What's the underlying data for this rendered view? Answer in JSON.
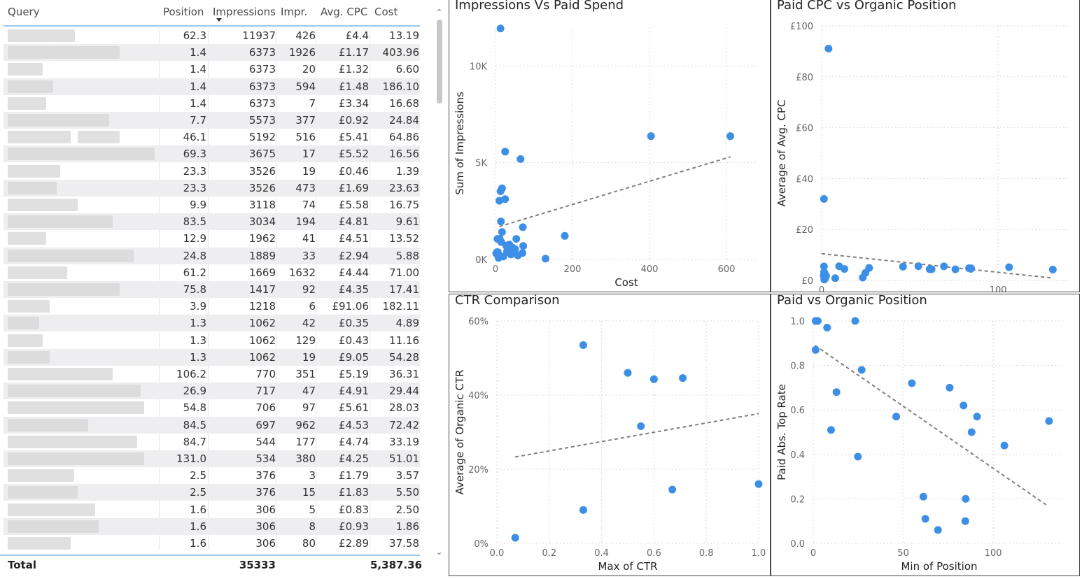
{
  "table": {
    "columns": {
      "query": "Query",
      "position": "Position",
      "impressions": "Impressions",
      "impr": "Impr.",
      "cpc": "Avg. CPC",
      "cost": "Cost"
    },
    "rows": [
      {
        "position": "62.3",
        "impressions": "11937",
        "impr": "426",
        "cpc": "£4.4",
        "cost": "13.19"
      },
      {
        "position": "1.4",
        "impressions": "6373",
        "impr": "1926",
        "cpc": "£1.17",
        "cost": "403.96"
      },
      {
        "position": "1.4",
        "impressions": "6373",
        "impr": "20",
        "cpc": "£1.32",
        "cost": "6.60"
      },
      {
        "position": "1.4",
        "impressions": "6373",
        "impr": "594",
        "cpc": "£1.48",
        "cost": "186.10"
      },
      {
        "position": "1.4",
        "impressions": "6373",
        "impr": "7",
        "cpc": "£3.34",
        "cost": "16.68"
      },
      {
        "position": "7.7",
        "impressions": "5573",
        "impr": "377",
        "cpc": "£0.92",
        "cost": "24.84"
      },
      {
        "position": "46.1",
        "impressions": "5192",
        "impr": "516",
        "cpc": "£5.41",
        "cost": "64.86"
      },
      {
        "position": "69.3",
        "impressions": "3675",
        "impr": "17",
        "cpc": "£5.52",
        "cost": "16.56"
      },
      {
        "position": "23.3",
        "impressions": "3526",
        "impr": "19",
        "cpc": "£0.46",
        "cost": "1.39"
      },
      {
        "position": "23.3",
        "impressions": "3526",
        "impr": "473",
        "cpc": "£1.69",
        "cost": "23.63"
      },
      {
        "position": "9.9",
        "impressions": "3118",
        "impr": "74",
        "cpc": "£5.58",
        "cost": "16.75"
      },
      {
        "position": "83.5",
        "impressions": "3034",
        "impr": "194",
        "cpc": "£4.81",
        "cost": "9.61"
      },
      {
        "position": "12.9",
        "impressions": "1962",
        "impr": "41",
        "cpc": "£4.51",
        "cost": "13.52"
      },
      {
        "position": "24.8",
        "impressions": "1889",
        "impr": "33",
        "cpc": "£2.94",
        "cost": "5.88"
      },
      {
        "position": "61.2",
        "impressions": "1669",
        "impr": "1632",
        "cpc": "£4.44",
        "cost": "71.00"
      },
      {
        "position": "75.8",
        "impressions": "1417",
        "impr": "92",
        "cpc": "£4.35",
        "cost": "17.41"
      },
      {
        "position": "3.9",
        "impressions": "1218",
        "impr": "6",
        "cpc": "£91.06",
        "cost": "182.11"
      },
      {
        "position": "1.3",
        "impressions": "1062",
        "impr": "42",
        "cpc": "£0.35",
        "cost": "4.89"
      },
      {
        "position": "1.3",
        "impressions": "1062",
        "impr": "129",
        "cpc": "£0.43",
        "cost": "11.16"
      },
      {
        "position": "1.3",
        "impressions": "1062",
        "impr": "19",
        "cpc": "£9.05",
        "cost": "54.28"
      },
      {
        "position": "106.2",
        "impressions": "770",
        "impr": "351",
        "cpc": "£5.19",
        "cost": "36.31"
      },
      {
        "position": "26.9",
        "impressions": "717",
        "impr": "47",
        "cpc": "£4.91",
        "cost": "29.44"
      },
      {
        "position": "54.8",
        "impressions": "706",
        "impr": "97",
        "cpc": "£5.61",
        "cost": "28.03"
      },
      {
        "position": "84.5",
        "impressions": "697",
        "impr": "962",
        "cpc": "£4.53",
        "cost": "72.42"
      },
      {
        "position": "84.7",
        "impressions": "544",
        "impr": "177",
        "cpc": "£4.74",
        "cost": "33.19"
      },
      {
        "position": "131.0",
        "impressions": "534",
        "impr": "380",
        "cpc": "£4.25",
        "cost": "51.01"
      },
      {
        "position": "2.5",
        "impressions": "376",
        "impr": "3",
        "cpc": "£1.79",
        "cost": "3.57"
      },
      {
        "position": "2.5",
        "impressions": "376",
        "impr": "15",
        "cpc": "£1.83",
        "cost": "5.50"
      },
      {
        "position": "1.6",
        "impressions": "306",
        "impr": "5",
        "cpc": "£0.83",
        "cost": "2.50"
      },
      {
        "position": "1.6",
        "impressions": "306",
        "impr": "8",
        "cpc": "£0.93",
        "cost": "1.86"
      },
      {
        "position": "1.6",
        "impressions": "306",
        "impr": "80",
        "cpc": "£2.89",
        "cost": "37.58"
      }
    ],
    "total": {
      "label": "Total",
      "impressions": "35333",
      "cost": "5,387.36"
    }
  },
  "colors": {
    "point": "#3d8fe6",
    "trend": "#7f7f7f",
    "grid": "#d9d9d9",
    "accent": "#9fc7e6"
  },
  "chart_data": [
    {
      "id": "impressions_vs_spend",
      "type": "scatter",
      "title": "Impressions Vs Paid Spend",
      "xlabel": "Cost",
      "ylabel": "Sum of Impressions",
      "xlim": [
        0,
        680
      ],
      "ylim": [
        0,
        12000
      ],
      "xticks": [
        0,
        200,
        400,
        600
      ],
      "xtick_labels": [
        "0",
        "200",
        "400",
        "600"
      ],
      "yticks": [
        0,
        5000,
        10000
      ],
      "ytick_labels": [
        "0K",
        "5K",
        "10K"
      ],
      "grid": true,
      "trend": [
        [
          10,
          1700
        ],
        [
          610,
          5300
        ]
      ],
      "points": [
        [
          13,
          11937
        ],
        [
          404,
          6373
        ],
        [
          610,
          6373
        ],
        [
          25,
          5573
        ],
        [
          65,
          5192
        ],
        [
          17,
          3675
        ],
        [
          13,
          3526
        ],
        [
          25,
          3118
        ],
        [
          10,
          3034
        ],
        [
          14,
          1962
        ],
        [
          71,
          1669
        ],
        [
          17,
          1417
        ],
        [
          180,
          1218
        ],
        [
          5,
          1062
        ],
        [
          11,
          1062
        ],
        [
          54,
          1062
        ],
        [
          36,
          770
        ],
        [
          29,
          717
        ],
        [
          28,
          706
        ],
        [
          72,
          697
        ],
        [
          33,
          544
        ],
        [
          51,
          534
        ],
        [
          4,
          376
        ],
        [
          6,
          376
        ],
        [
          2,
          306
        ],
        [
          2,
          306
        ],
        [
          38,
          306
        ],
        [
          130,
          40
        ],
        [
          70,
          330
        ],
        [
          45,
          600
        ],
        [
          20,
          150
        ],
        [
          58,
          210
        ],
        [
          8,
          80
        ],
        [
          15,
          900
        ],
        [
          30,
          420
        ],
        [
          40,
          260
        ]
      ]
    },
    {
      "id": "paid_cpc_vs_organic_position",
      "type": "scatter",
      "title": "Paid CPC vs Organic Position",
      "xlabel": "",
      "ylabel": "Average of Avg. CPC",
      "xlim": [
        0,
        140
      ],
      "ylim": [
        0,
        100
      ],
      "xticks": [
        0,
        100
      ],
      "xtick_labels": [
        "0",
        "100"
      ],
      "yticks": [
        0,
        20,
        40,
        60,
        80,
        100
      ],
      "ytick_labels": [
        "£0",
        "£20",
        "£40",
        "£60",
        "£80",
        "£100"
      ],
      "grid": true,
      "trend": [
        [
          0,
          10.5
        ],
        [
          130,
          1
        ]
      ],
      "points": [
        [
          3.9,
          91.06
        ],
        [
          1.3,
          32
        ],
        [
          1.3,
          5.5
        ],
        [
          1.4,
          1.3
        ],
        [
          1.4,
          3.3
        ],
        [
          1.6,
          2.9
        ],
        [
          2.5,
          1.8
        ],
        [
          7.7,
          0.9
        ],
        [
          9.9,
          5.58
        ],
        [
          12.9,
          4.51
        ],
        [
          23.3,
          1.1
        ],
        [
          24.8,
          2.94
        ],
        [
          26.9,
          4.91
        ],
        [
          46.1,
          5.41
        ],
        [
          54.8,
          5.61
        ],
        [
          61.2,
          4.44
        ],
        [
          62.3,
          4.4
        ],
        [
          69.3,
          5.52
        ],
        [
          75.8,
          4.35
        ],
        [
          83.5,
          4.81
        ],
        [
          84.5,
          4.53
        ],
        [
          84.7,
          4.74
        ],
        [
          106.2,
          5.19
        ],
        [
          131.0,
          4.25
        ],
        [
          1.5,
          0.35
        ],
        [
          2.0,
          0.8
        ],
        [
          1.2,
          2.0
        ]
      ]
    },
    {
      "id": "ctr_comparison",
      "type": "scatter",
      "title": "CTR Comparison",
      "xlabel": "Max of CTR",
      "ylabel": "Average of Organic CTR",
      "xlim": [
        0,
        1
      ],
      "ylim": [
        0,
        0.6
      ],
      "xticks": [
        0,
        0.2,
        0.4,
        0.6,
        0.8,
        1.0
      ],
      "xtick_labels": [
        "0.0",
        "0.2",
        "0.4",
        "0.6",
        "0.8",
        "1.0"
      ],
      "yticks": [
        0,
        0.2,
        0.4,
        0.6
      ],
      "ytick_labels": [
        "0%",
        "20%",
        "40%",
        "60%"
      ],
      "grid": true,
      "trend": [
        [
          0.07,
          0.233
        ],
        [
          1.0,
          0.35
        ]
      ],
      "points": [
        [
          0.07,
          0.015
        ],
        [
          0.33,
          0.535
        ],
        [
          0.33,
          0.09
        ],
        [
          0.5,
          0.46
        ],
        [
          0.6,
          0.443
        ],
        [
          0.55,
          0.316
        ],
        [
          0.67,
          0.145
        ],
        [
          0.71,
          0.446
        ],
        [
          1.0,
          0.16
        ]
      ]
    },
    {
      "id": "paid_vs_organic_position",
      "type": "scatter",
      "title": "Paid vs Organic Position",
      "xlabel": "Min of Position",
      "ylabel": "Paid Abs. Top Rate",
      "xlim": [
        0,
        140
      ],
      "ylim": [
        0,
        1.0
      ],
      "xticks": [
        0,
        50,
        100
      ],
      "xtick_labels": [
        "0",
        "50",
        "100"
      ],
      "yticks": [
        0,
        0.2,
        0.4,
        0.6,
        0.8,
        1.0
      ],
      "ytick_labels": [
        "0.0",
        "0.2",
        "0.4",
        "0.6",
        "0.8",
        "1.0"
      ],
      "grid": true,
      "trend": [
        [
          1,
          0.89
        ],
        [
          130,
          0.17
        ]
      ],
      "points": [
        [
          1.3,
          1.0
        ],
        [
          1.4,
          1.0
        ],
        [
          1.6,
          1.0
        ],
        [
          2.5,
          1.0
        ],
        [
          1.3,
          0.87
        ],
        [
          7.7,
          0.97
        ],
        [
          23.3,
          1.0
        ],
        [
          9.9,
          0.51
        ],
        [
          12.9,
          0.68
        ],
        [
          26.9,
          0.78
        ],
        [
          24.8,
          0.39
        ],
        [
          46.1,
          0.57
        ],
        [
          54.8,
          0.72
        ],
        [
          61.2,
          0.21
        ],
        [
          62.3,
          0.11
        ],
        [
          69.3,
          0.06
        ],
        [
          75.8,
          0.7
        ],
        [
          83.5,
          0.62
        ],
        [
          84.7,
          0.2
        ],
        [
          84.5,
          0.1
        ],
        [
          88,
          0.5
        ],
        [
          91,
          0.57
        ],
        [
          106.2,
          0.44
        ],
        [
          131.0,
          0.55
        ]
      ]
    }
  ]
}
